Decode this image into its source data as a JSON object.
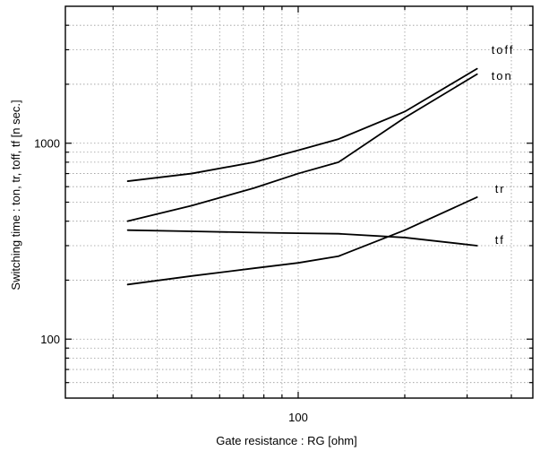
{
  "chart_data": {
    "type": "line",
    "title": "",
    "xlabel": "Gate resistance  :  RG [ohm]",
    "ylabel": "Switching time  : ton, tr, toff, tf  [n sec.]",
    "x_scale": "log",
    "y_scale": "log",
    "xlim": [
      22,
      460
    ],
    "ylim": [
      50,
      5000
    ],
    "x_tick_labels": [
      {
        "value": 100,
        "label": "100"
      }
    ],
    "y_tick_labels": [
      {
        "value": 100,
        "label": "100"
      },
      {
        "value": 1000,
        "label": "1000"
      }
    ],
    "grid": true,
    "series": [
      {
        "name": "toff",
        "x": [
          33,
          50,
          75,
          100,
          130,
          200,
          320
        ],
        "y": [
          640,
          700,
          800,
          920,
          1050,
          1450,
          2400
        ]
      },
      {
        "name": "ton",
        "x": [
          33,
          50,
          75,
          100,
          130,
          200,
          320
        ],
        "y": [
          400,
          480,
          590,
          700,
          800,
          1350,
          2250
        ]
      },
      {
        "name": "tr",
        "x": [
          33,
          50,
          75,
          100,
          130,
          200,
          320
        ],
        "y": [
          190,
          210,
          230,
          245,
          265,
          360,
          530
        ]
      },
      {
        "name": "tf",
        "x": [
          33,
          50,
          75,
          100,
          130,
          200,
          320
        ],
        "y": [
          360,
          355,
          350,
          347,
          345,
          330,
          300
        ]
      }
    ],
    "series_label_text": {
      "toff": "toff",
      "ton": "ton",
      "tr": "tr",
      "tf": "tf"
    }
  }
}
